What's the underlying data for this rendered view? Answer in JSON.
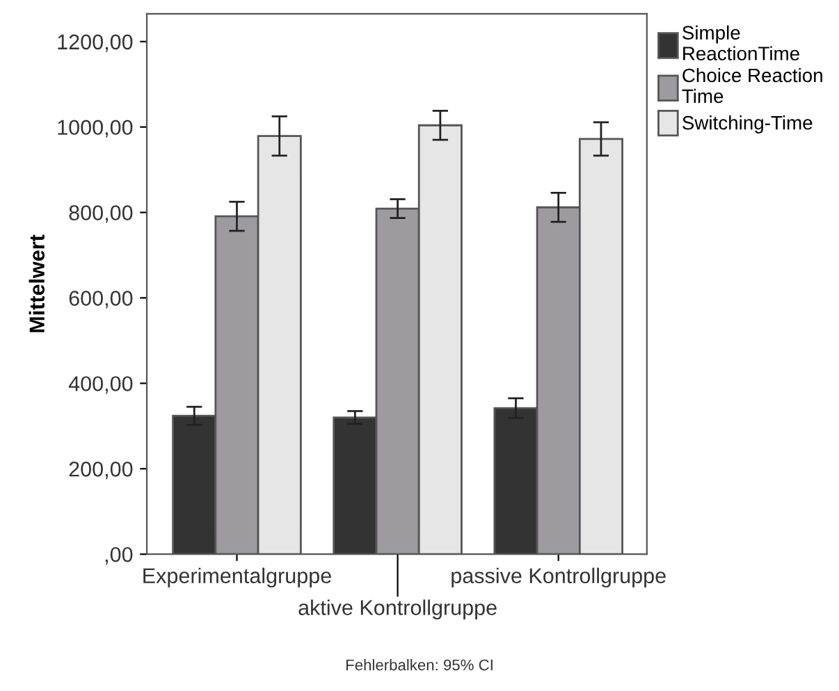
{
  "chart_data": {
    "type": "bar",
    "ylabel": "Mittelwert",
    "categories": [
      "Experimentalgruppe",
      "aktive Kontrollgruppe",
      "passive Kontrollgruppe"
    ],
    "series": [
      {
        "name": "Simple ReactionTime",
        "color": "#333333",
        "values": [
          324,
          320,
          342
        ],
        "errors": [
          21,
          15,
          23
        ]
      },
      {
        "name": "Choice Reaction Time",
        "color": "#9d9b9f",
        "values": [
          791,
          809,
          812
        ],
        "errors": [
          34,
          22,
          34
        ]
      },
      {
        "name": "Switching-Time",
        "color": "#e6e6e6",
        "values": [
          979,
          1004,
          972
        ],
        "errors": [
          46,
          34,
          39
        ]
      }
    ],
    "ylim": [
      0,
      1265
    ],
    "yticks": [
      {
        "value": 0,
        "label": ",00"
      },
      {
        "value": 200,
        "label": "200,00"
      },
      {
        "value": 400,
        "label": "400,00"
      },
      {
        "value": 600,
        "label": "600,00"
      },
      {
        "value": 800,
        "label": "800,00"
      },
      {
        "value": 1000,
        "label": "1000,00"
      },
      {
        "value": 1200,
        "label": "1200,00"
      }
    ],
    "legend": "top right",
    "grid": false,
    "annotations": [
      "Fehlerbalken: 95% CI"
    ]
  }
}
